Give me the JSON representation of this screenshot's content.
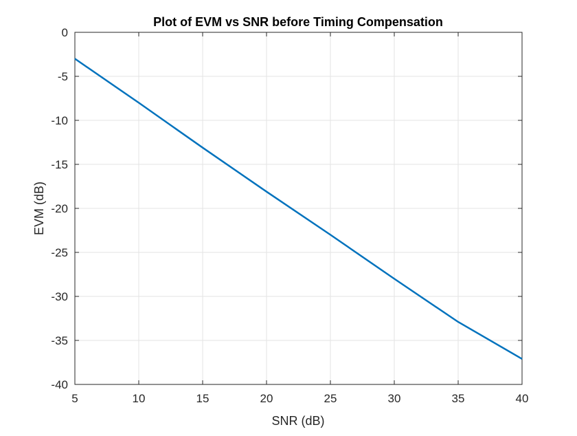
{
  "chart_data": {
    "type": "line",
    "title": "Plot of EVM vs SNR before Timing Compensation",
    "xlabel": "SNR (dB)",
    "ylabel": "EVM (dB)",
    "xlim": [
      5,
      40
    ],
    "ylim": [
      -40,
      0
    ],
    "xticks": [
      5,
      10,
      15,
      20,
      25,
      30,
      35,
      40
    ],
    "yticks": [
      0,
      -5,
      -10,
      -15,
      -20,
      -25,
      -30,
      -35,
      -40
    ],
    "grid": true,
    "line_color": "#0072BD",
    "series": [
      {
        "x": [
          5,
          10,
          15,
          20,
          25,
          30,
          35,
          40
        ],
        "values": [
          -3.0,
          -8.0,
          -13.1,
          -18.1,
          -23.0,
          -28.0,
          -32.9,
          -37.1
        ]
      }
    ]
  }
}
